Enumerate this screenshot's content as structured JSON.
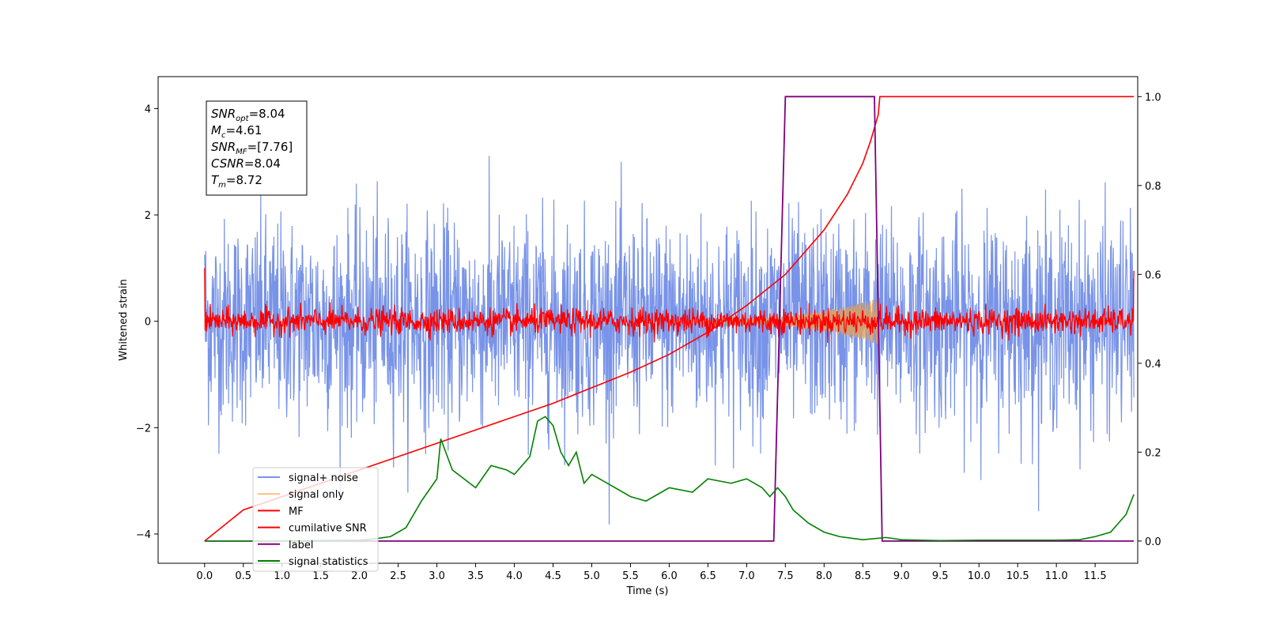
{
  "chart_data": {
    "type": "line",
    "xlabel": "Time (s)",
    "ylabel": "Whitened strain",
    "xlim": [
      -0.6,
      12.05
    ],
    "ylim_left": [
      -4.55,
      4.6
    ],
    "ylim_right": [
      -0.05,
      1.045
    ],
    "x_ticks": [
      "0.0",
      "0.5",
      "1.0",
      "1.5",
      "2.0",
      "2.5",
      "3.0",
      "3.5",
      "4.0",
      "4.5",
      "5.0",
      "5.5",
      "6.0",
      "6.5",
      "7.0",
      "7.5",
      "8.0",
      "8.5",
      "9.0",
      "9.5",
      "10.0",
      "10.5",
      "11.0",
      "11.5"
    ],
    "y_ticks_left": [
      "4",
      "2",
      "0",
      "−2",
      "−4"
    ],
    "y_ticks_right": [
      "1.0",
      "0.8",
      "0.6",
      "0.4",
      "0.2",
      "0.0"
    ],
    "legend": {
      "placement": "lower-left",
      "entries": [
        {
          "label": "signal+ noise",
          "color": "#7893e8"
        },
        {
          "label": "signal only",
          "color": "#ffbf80"
        },
        {
          "label": "MF",
          "color": "#ff0000"
        },
        {
          "label": "cumilative SNR",
          "color": "#ff0000"
        },
        {
          "label": "label",
          "color": "#800080"
        },
        {
          "label": "signal statistics",
          "color": "#008000"
        }
      ]
    },
    "annotation": [
      {
        "base": "SNR",
        "sub": "opt",
        "rest": "=8.04"
      },
      {
        "base": "M",
        "sub": "c",
        "rest": "=4.61"
      },
      {
        "base": "SNR",
        "sub": "MF",
        "rest": "=[7.76]"
      },
      {
        "base": "CSNR",
        "sub": "",
        "rest": "=8.04"
      },
      {
        "base": "T",
        "sub": "m",
        "rest": "=8.72"
      }
    ],
    "series": [
      {
        "name": "signal+ noise",
        "axis": "left",
        "kind": "noise",
        "x_range": [
          0,
          12.0
        ],
        "amplitude_std": 0.95
      },
      {
        "name": "signal only",
        "axis": "left",
        "kind": "chirp",
        "x_range": [
          6.0,
          8.72
        ],
        "peak_amplitude": 0.45
      },
      {
        "name": "MF",
        "axis": "left",
        "kind": "noise",
        "x_range": [
          0,
          12.0
        ],
        "amplitude_std": 0.12
      },
      {
        "name": "cumilative SNR",
        "axis": "right",
        "x": [
          0,
          0.5,
          1,
          1.5,
          2,
          2.5,
          3,
          3.5,
          4,
          4.5,
          5,
          5.5,
          6,
          6.5,
          7,
          7.5,
          8,
          8.3,
          8.5,
          8.6,
          8.7,
          8.72,
          9,
          10,
          11,
          12
        ],
        "y": [
          0,
          0.07,
          0.1,
          0.13,
          0.16,
          0.19,
          0.22,
          0.25,
          0.28,
          0.31,
          0.345,
          0.38,
          0.42,
          0.47,
          0.53,
          0.6,
          0.7,
          0.78,
          0.85,
          0.9,
          0.96,
          1.0,
          1.0,
          1.0,
          1.0,
          1.0
        ]
      },
      {
        "name": "label",
        "axis": "right",
        "x": [
          0,
          7.35,
          7.5,
          8.65,
          8.75,
          12.0
        ],
        "y": [
          0,
          0,
          1,
          1,
          0,
          0
        ]
      },
      {
        "name": "signal statistics",
        "axis": "right",
        "x": [
          0,
          1,
          2,
          2.2,
          2.4,
          2.6,
          2.8,
          3.0,
          3.05,
          3.2,
          3.5,
          3.7,
          3.9,
          4.0,
          4.2,
          4.3,
          4.4,
          4.5,
          4.6,
          4.7,
          4.8,
          4.9,
          5.0,
          5.2,
          5.5,
          5.7,
          6.0,
          6.3,
          6.5,
          6.8,
          7.0,
          7.2,
          7.3,
          7.4,
          7.5,
          7.6,
          7.8,
          8.0,
          8.2,
          8.5,
          8.8,
          9.0,
          9.5,
          10,
          10.5,
          11,
          11.3,
          11.5,
          11.7,
          11.9,
          12.0
        ],
        "y": [
          0,
          0,
          0.002,
          0.005,
          0.01,
          0.03,
          0.09,
          0.14,
          0.23,
          0.16,
          0.12,
          0.17,
          0.16,
          0.15,
          0.19,
          0.27,
          0.28,
          0.26,
          0.2,
          0.17,
          0.2,
          0.13,
          0.15,
          0.13,
          0.1,
          0.09,
          0.12,
          0.11,
          0.14,
          0.13,
          0.14,
          0.12,
          0.1,
          0.12,
          0.1,
          0.07,
          0.04,
          0.02,
          0.01,
          0.003,
          0.008,
          0.003,
          0.001,
          0.002,
          0.002,
          0.002,
          0.003,
          0.01,
          0.02,
          0.06,
          0.105
        ]
      }
    ]
  }
}
